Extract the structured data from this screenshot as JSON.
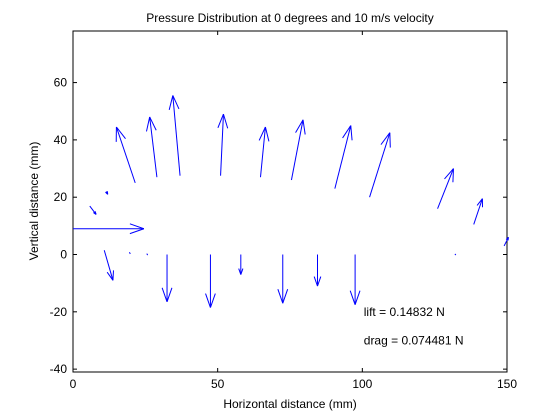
{
  "chart_data": {
    "type": "quiver",
    "title": "Pressure Distribution at 0 degrees and 10 m/s velocity",
    "xlabel": "Horizontal distance (mm)",
    "ylabel": "Vertical distance (mm)",
    "xlim": [
      0,
      150
    ],
    "ylim": [
      -41,
      78
    ],
    "xticks": [
      0,
      50,
      100,
      150
    ],
    "yticks": [
      -40,
      -20,
      0,
      20,
      40,
      60
    ],
    "grid": false,
    "arrow_color": "#0000ff",
    "arrows": [
      {
        "x": 5.8,
        "y": 16.9,
        "x2": 8.0,
        "y2": 14.0
      },
      {
        "x": 11.5,
        "y": 22.0,
        "x2": 12.0,
        "y2": 21.0
      },
      {
        "x": 0.0,
        "y": 9.0,
        "x2": 24.5,
        "y2": 9.0
      },
      {
        "x": 21.5,
        "y": 25.0,
        "x2": 15.0,
        "y2": 44.5
      },
      {
        "x": 29.0,
        "y": 27.0,
        "x2": 26.5,
        "y2": 48.0
      },
      {
        "x": 37.0,
        "y": 27.5,
        "x2": 34.5,
        "y2": 55.5
      },
      {
        "x": 51.0,
        "y": 27.5,
        "x2": 52.0,
        "y2": 49.0
      },
      {
        "x": 64.8,
        "y": 27.0,
        "x2": 66.5,
        "y2": 44.5
      },
      {
        "x": 75.5,
        "y": 26.0,
        "x2": 79.5,
        "y2": 47.0
      },
      {
        "x": 90.5,
        "y": 23.0,
        "x2": 96.0,
        "y2": 45.0
      },
      {
        "x": 102.5,
        "y": 20.0,
        "x2": 109.5,
        "y2": 42.5
      },
      {
        "x": 126.0,
        "y": 16.0,
        "x2": 131.5,
        "y2": 30.0
      },
      {
        "x": 138.5,
        "y": 10.5,
        "x2": 141.5,
        "y2": 19.5
      },
      {
        "x": 149.0,
        "y": 3.0,
        "x2": 150.5,
        "y2": 6.0
      },
      {
        "x": 10.8,
        "y": 1.5,
        "x2": 13.8,
        "y2": -9.0
      },
      {
        "x": 19.5,
        "y": 0.8,
        "x2": 19.8,
        "y2": 0.2
      },
      {
        "x": 25.5,
        "y": 0.3,
        "x2": 25.8,
        "y2": -0.2
      },
      {
        "x": 32.5,
        "y": 0.0,
        "x2": 32.5,
        "y2": -16.5
      },
      {
        "x": 47.5,
        "y": 0.0,
        "x2": 47.5,
        "y2": -18.5
      },
      {
        "x": 58.0,
        "y": 0.0,
        "x2": 58.0,
        "y2": -7.0
      },
      {
        "x": 72.5,
        "y": 0.0,
        "x2": 72.5,
        "y2": -17.0
      },
      {
        "x": 84.5,
        "y": 0.0,
        "x2": 84.5,
        "y2": -11.0
      },
      {
        "x": 97.5,
        "y": 0.0,
        "x2": 97.5,
        "y2": -17.5
      },
      {
        "x": 132.0,
        "y": 0.2,
        "x2": 132.3,
        "y2": -0.2
      }
    ],
    "annotations": [
      {
        "text": "lift = 0.14832 N",
        "x": 100.5,
        "y": -20.0
      },
      {
        "text": "drag = 0.074481 N",
        "x": 100.5,
        "y": -30.0
      }
    ]
  }
}
